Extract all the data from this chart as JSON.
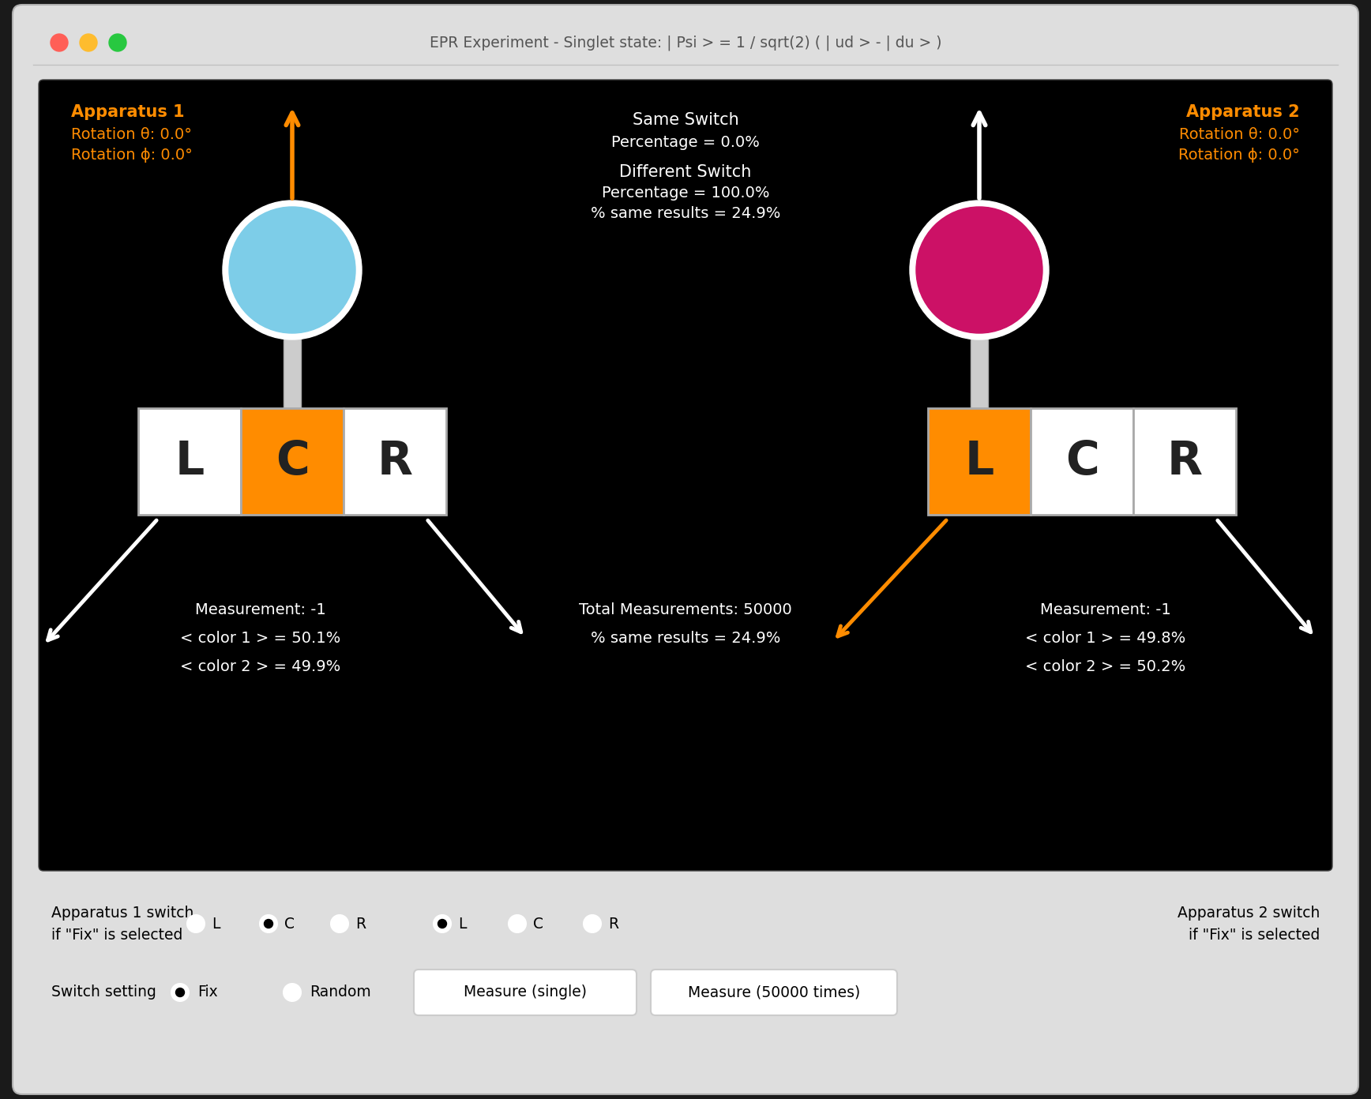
{
  "title": "EPR Experiment - Singlet state: | Psi > = 1 / sqrt(2) ( | ud > - | du > )",
  "orange_color": "#FF8C00",
  "blue_circle_color": "#7DCDE8",
  "magenta_circle_color": "#CC1166",
  "lcr_bg": "#FFFFFF",
  "lcr_selected_bg": "#FF8C00",
  "apparatus1_label": "Apparatus 1",
  "apparatus1_theta": "Rotation θ: 0.0°",
  "apparatus1_phi": "Rotation ϕ: 0.0°",
  "apparatus2_label": "Apparatus 2",
  "apparatus2_theta": "Rotation θ: 0.0°",
  "apparatus2_phi": "Rotation ϕ: 0.0°"
}
